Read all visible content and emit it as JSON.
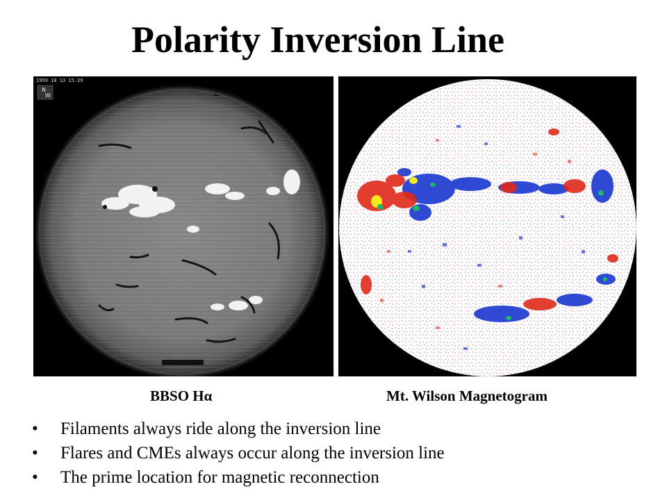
{
  "slide": {
    "title": "Polarity Inversion Line",
    "panels": [
      {
        "caption": "BBSO Hα",
        "image_stamp": "1999 10 13 15:29",
        "orientation": [
          "N",
          "W"
        ]
      },
      {
        "caption": "Mt. Wilson Magnetogram"
      }
    ],
    "bullet_symbol": "•",
    "bullets": [
      "Filaments always ride along the inversion line",
      "Flares and CMEs always occur along the inversion line",
      "The prime location for magnetic reconnection"
    ],
    "colors": {
      "background": "#ffffff",
      "text": "#000000",
      "image_background": "#000000",
      "negative_polarity": "#1e3bd0",
      "positive_polarity": "#e02a1a",
      "strong_field_yellow": "#f6e81a",
      "strong_field_green": "#1db86a"
    }
  }
}
